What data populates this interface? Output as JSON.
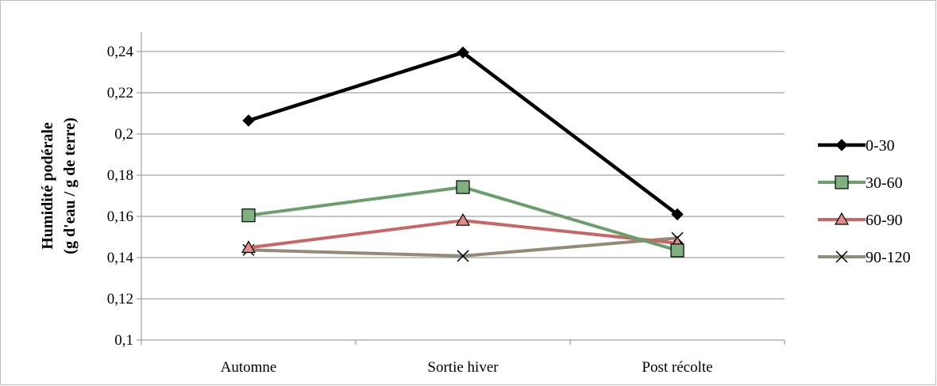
{
  "chart_data": {
    "type": "line",
    "categories": [
      "Automne",
      "Sortie hiver",
      "Post récolte"
    ],
    "ylabel": [
      "Humidité podérale",
      "(g d'eau / g de terre)"
    ],
    "ylim": [
      0.1,
      0.24
    ],
    "yticks": [
      "0,1",
      "0,12",
      "0,14",
      "0,16",
      "0,18",
      "0,2",
      "0,22",
      "0,24"
    ],
    "ytick_values": [
      0.1,
      0.12,
      0.14,
      0.16,
      0.18,
      0.2,
      0.22,
      0.24
    ],
    "grid": true,
    "legend_position": "right",
    "series": [
      {
        "name": "0-30",
        "values": [
          0.2065,
          0.2395,
          0.161
        ],
        "color": "#000000",
        "marker": "diamond",
        "marker_fill": "#000000"
      },
      {
        "name": "30-60",
        "values": [
          0.1605,
          0.1742,
          0.1435
        ],
        "color": "#6a9e6a",
        "marker": "square",
        "marker_fill": "#7fb07f"
      },
      {
        "name": "60-90",
        "values": [
          0.1448,
          0.158,
          0.147
        ],
        "color": "#c96565",
        "marker": "triangle",
        "marker_fill": "#e38a8a"
      },
      {
        "name": "90-120",
        "values": [
          0.1437,
          0.1408,
          0.1495
        ],
        "color": "#948a77",
        "marker": "x",
        "marker_fill": "#000000"
      }
    ]
  }
}
